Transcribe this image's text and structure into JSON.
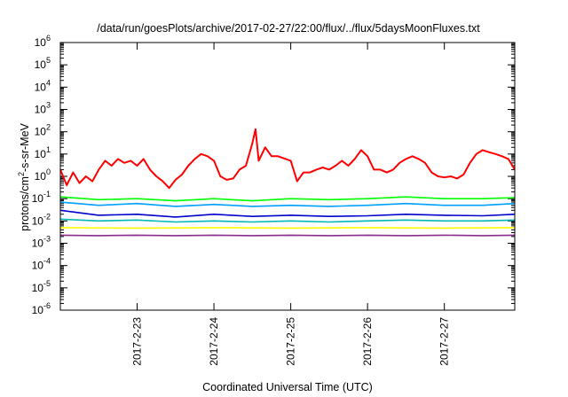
{
  "chart_data": {
    "type": "line",
    "title": "/data/run/goesPlots/archive/2017-02-27/22:00/flux/../flux/5daysMoonFluxes.txt",
    "xlabel": "Coordinated Universal Time (UTC)",
    "ylabel": {
      "prefix": "protons/cm",
      "sup": "2",
      "suffix": "-s-sr-MeV"
    },
    "y_scale": "log",
    "y_ticks": [
      {
        "value": 1e-06,
        "base": "10",
        "exp": "-6"
      },
      {
        "value": 1e-05,
        "base": "10",
        "exp": "-5"
      },
      {
        "value": 0.0001,
        "base": "10",
        "exp": "-4"
      },
      {
        "value": 0.001,
        "base": "10",
        "exp": "-3"
      },
      {
        "value": 0.01,
        "base": "10",
        "exp": "-2"
      },
      {
        "value": 0.1,
        "base": "10",
        "exp": "-1"
      },
      {
        "value": 1,
        "base": "10",
        "exp": "0"
      },
      {
        "value": 10,
        "base": "10",
        "exp": "1"
      },
      {
        "value": 100,
        "base": "10",
        "exp": "2"
      },
      {
        "value": 1000,
        "base": "10",
        "exp": "3"
      },
      {
        "value": 10000,
        "base": "10",
        "exp": "4"
      },
      {
        "value": 100000,
        "base": "10",
        "exp": "5"
      },
      {
        "value": 1000000,
        "base": "10",
        "exp": "6"
      }
    ],
    "x_range": [
      "2017-02-22 00:00",
      "2017-02-27 22:00"
    ],
    "ylim": [
      1e-06,
      1000000.0
    ],
    "x_ticks": [
      {
        "value": "2017-02-23 00:00",
        "label": "2017-2-23"
      },
      {
        "value": "2017-02-24 00:00",
        "label": "2017-2-24"
      },
      {
        "value": "2017-02-25 00:00",
        "label": "2017-2-25"
      },
      {
        "value": "2017-02-26 00:00",
        "label": "2017-2-26"
      },
      {
        "value": "2017-02-27 00:00",
        "label": "2017-2-27"
      }
    ],
    "grid": false,
    "legend": false,
    "series": [
      {
        "color": "#ff0000",
        "points": [
          [
            "2017-02-22 00:00",
            2
          ],
          [
            "2017-02-22 02:00",
            0.4
          ],
          [
            "2017-02-22 04:00",
            1.5
          ],
          [
            "2017-02-22 06:00",
            0.5
          ],
          [
            "2017-02-22 08:00",
            1.0
          ],
          [
            "2017-02-22 10:00",
            0.6
          ],
          [
            "2017-02-22 12:00",
            2
          ],
          [
            "2017-02-22 14:00",
            5
          ],
          [
            "2017-02-22 16:00",
            3
          ],
          [
            "2017-02-22 18:00",
            6
          ],
          [
            "2017-02-22 20:00",
            4
          ],
          [
            "2017-02-22 22:00",
            5
          ],
          [
            "2017-02-23 00:00",
            3
          ],
          [
            "2017-02-23 02:00",
            6
          ],
          [
            "2017-02-23 04:00",
            2
          ],
          [
            "2017-02-23 06:00",
            1.0
          ],
          [
            "2017-02-23 08:00",
            0.6
          ],
          [
            "2017-02-23 10:00",
            0.3
          ],
          [
            "2017-02-23 12:00",
            0.7
          ],
          [
            "2017-02-23 14:00",
            1.2
          ],
          [
            "2017-02-23 16:00",
            3
          ],
          [
            "2017-02-23 18:00",
            6
          ],
          [
            "2017-02-23 20:00",
            10
          ],
          [
            "2017-02-23 22:00",
            8
          ],
          [
            "2017-02-24 00:00",
            5
          ],
          [
            "2017-02-24 02:00",
            1.0
          ],
          [
            "2017-02-24 04:00",
            0.7
          ],
          [
            "2017-02-24 06:00",
            0.8
          ],
          [
            "2017-02-24 08:00",
            2
          ],
          [
            "2017-02-24 10:00",
            3
          ],
          [
            "2017-02-24 12:00",
            30
          ],
          [
            "2017-02-24 13:00",
            130
          ],
          [
            "2017-02-24 14:00",
            5
          ],
          [
            "2017-02-24 16:00",
            20
          ],
          [
            "2017-02-24 18:00",
            8
          ],
          [
            "2017-02-24 20:00",
            8
          ],
          [
            "2017-02-25 00:00",
            5
          ],
          [
            "2017-02-25 02:00",
            0.6
          ],
          [
            "2017-02-25 04:00",
            1.5
          ],
          [
            "2017-02-25 06:00",
            1.5
          ],
          [
            "2017-02-25 08:00",
            2
          ],
          [
            "2017-02-25 10:00",
            2.5
          ],
          [
            "2017-02-25 12:00",
            2
          ],
          [
            "2017-02-25 14:00",
            3
          ],
          [
            "2017-02-25 16:00",
            5
          ],
          [
            "2017-02-25 18:00",
            3
          ],
          [
            "2017-02-25 20:00",
            6
          ],
          [
            "2017-02-25 22:00",
            15
          ],
          [
            "2017-02-26 00:00",
            8
          ],
          [
            "2017-02-26 02:00",
            2
          ],
          [
            "2017-02-26 04:00",
            2
          ],
          [
            "2017-02-26 06:00",
            1.5
          ],
          [
            "2017-02-26 08:00",
            2
          ],
          [
            "2017-02-26 10:00",
            4
          ],
          [
            "2017-02-26 12:00",
            6
          ],
          [
            "2017-02-26 14:00",
            8
          ],
          [
            "2017-02-26 16:00",
            6
          ],
          [
            "2017-02-26 18:00",
            4
          ],
          [
            "2017-02-26 20:00",
            1.5
          ],
          [
            "2017-02-26 22:00",
            1.0
          ],
          [
            "2017-02-27 00:00",
            0.9
          ],
          [
            "2017-02-27 02:00",
            1.0
          ],
          [
            "2017-02-27 04:00",
            0.8
          ],
          [
            "2017-02-27 06:00",
            1.2
          ],
          [
            "2017-02-27 08:00",
            4
          ],
          [
            "2017-02-27 10:00",
            10
          ],
          [
            "2017-02-27 12:00",
            15
          ],
          [
            "2017-02-27 14:00",
            12
          ],
          [
            "2017-02-27 16:00",
            10
          ],
          [
            "2017-02-27 18:00",
            8
          ],
          [
            "2017-02-27 20:00",
            6
          ],
          [
            "2017-02-27 22:00",
            2
          ]
        ]
      },
      {
        "color": "#00ff00",
        "points": [
          [
            "2017-02-22 00:00",
            0.12
          ],
          [
            "2017-02-22 12:00",
            0.09
          ],
          [
            "2017-02-23 00:00",
            0.1
          ],
          [
            "2017-02-23 12:00",
            0.08
          ],
          [
            "2017-02-24 00:00",
            0.1
          ],
          [
            "2017-02-24 12:00",
            0.08
          ],
          [
            "2017-02-25 00:00",
            0.1
          ],
          [
            "2017-02-25 12:00",
            0.09
          ],
          [
            "2017-02-26 00:00",
            0.1
          ],
          [
            "2017-02-26 12:00",
            0.12
          ],
          [
            "2017-02-27 00:00",
            0.1
          ],
          [
            "2017-02-27 12:00",
            0.1
          ],
          [
            "2017-02-27 22:00",
            0.11
          ]
        ]
      },
      {
        "color": "#00a0ff",
        "points": [
          [
            "2017-02-22 00:00",
            0.07
          ],
          [
            "2017-02-22 12:00",
            0.05
          ],
          [
            "2017-02-23 00:00",
            0.06
          ],
          [
            "2017-02-23 12:00",
            0.045
          ],
          [
            "2017-02-24 00:00",
            0.055
          ],
          [
            "2017-02-24 12:00",
            0.045
          ],
          [
            "2017-02-25 00:00",
            0.05
          ],
          [
            "2017-02-25 12:00",
            0.045
          ],
          [
            "2017-02-26 00:00",
            0.05
          ],
          [
            "2017-02-26 12:00",
            0.06
          ],
          [
            "2017-02-27 00:00",
            0.05
          ],
          [
            "2017-02-27 12:00",
            0.05
          ],
          [
            "2017-02-27 22:00",
            0.06
          ]
        ]
      },
      {
        "color": "#0000cc",
        "points": [
          [
            "2017-02-22 00:00",
            0.03
          ],
          [
            "2017-02-22 12:00",
            0.018
          ],
          [
            "2017-02-23 00:00",
            0.02
          ],
          [
            "2017-02-23 12:00",
            0.015
          ],
          [
            "2017-02-24 00:00",
            0.02
          ],
          [
            "2017-02-24 12:00",
            0.016
          ],
          [
            "2017-02-25 00:00",
            0.018
          ],
          [
            "2017-02-25 12:00",
            0.016
          ],
          [
            "2017-02-26 00:00",
            0.017
          ],
          [
            "2017-02-26 12:00",
            0.02
          ],
          [
            "2017-02-27 00:00",
            0.018
          ],
          [
            "2017-02-27 12:00",
            0.017
          ],
          [
            "2017-02-27 22:00",
            0.02
          ]
        ]
      },
      {
        "color": "#00b8b8",
        "points": [
          [
            "2017-02-22 00:00",
            0.012
          ],
          [
            "2017-02-22 12:00",
            0.01
          ],
          [
            "2017-02-23 00:00",
            0.011
          ],
          [
            "2017-02-23 12:00",
            0.009
          ],
          [
            "2017-02-24 00:00",
            0.01
          ],
          [
            "2017-02-24 12:00",
            0.009
          ],
          [
            "2017-02-25 00:00",
            0.01
          ],
          [
            "2017-02-25 12:00",
            0.009
          ],
          [
            "2017-02-26 00:00",
            0.01
          ],
          [
            "2017-02-26 12:00",
            0.011
          ],
          [
            "2017-02-27 00:00",
            0.01
          ],
          [
            "2017-02-27 12:00",
            0.01
          ],
          [
            "2017-02-27 22:00",
            0.011
          ]
        ]
      },
      {
        "color": "#ffff00",
        "points": [
          [
            "2017-02-22 00:00",
            0.005
          ],
          [
            "2017-02-23 00:00",
            0.0048
          ],
          [
            "2017-02-24 00:00",
            0.005
          ],
          [
            "2017-02-25 00:00",
            0.0048
          ],
          [
            "2017-02-26 00:00",
            0.005
          ],
          [
            "2017-02-27 00:00",
            0.0048
          ],
          [
            "2017-02-27 22:00",
            0.005
          ]
        ]
      },
      {
        "color": "#8a2c8a",
        "points": [
          [
            "2017-02-22 00:00",
            0.0023
          ],
          [
            "2017-02-22 12:00",
            0.0022
          ],
          [
            "2017-02-23 00:00",
            0.0023
          ],
          [
            "2017-02-23 12:00",
            0.0022
          ],
          [
            "2017-02-24 00:00",
            0.0023
          ],
          [
            "2017-02-24 12:00",
            0.0022
          ],
          [
            "2017-02-25 00:00",
            0.0023
          ],
          [
            "2017-02-25 12:00",
            0.0022
          ],
          [
            "2017-02-26 00:00",
            0.0023
          ],
          [
            "2017-02-26 12:00",
            0.0022
          ],
          [
            "2017-02-27 00:00",
            0.0023
          ],
          [
            "2017-02-27 12:00",
            0.0022
          ],
          [
            "2017-02-27 22:00",
            0.0023
          ]
        ]
      }
    ]
  }
}
